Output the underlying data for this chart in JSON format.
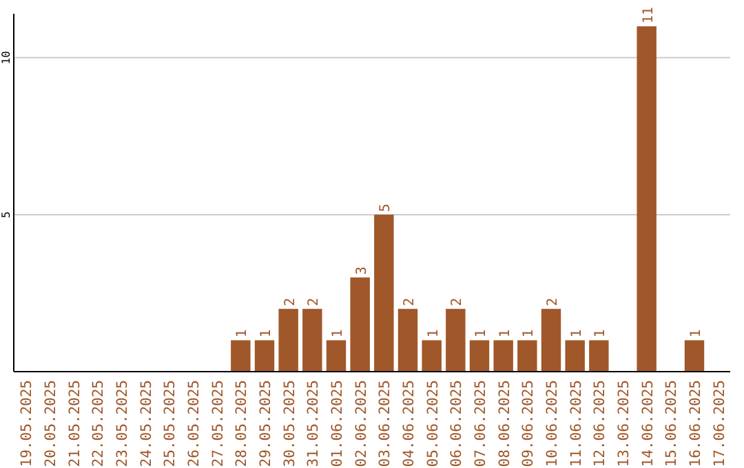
{
  "chart_data": {
    "type": "bar",
    "categories": [
      "19.05.2025",
      "20.05.2025",
      "21.05.2025",
      "22.05.2025",
      "23.05.2025",
      "24.05.2025",
      "25.05.2025",
      "26.05.2025",
      "27.05.2025",
      "28.05.2025",
      "29.05.2025",
      "30.05.2025",
      "31.05.2025",
      "01.06.2025",
      "02.06.2025",
      "03.06.2025",
      "04.06.2025",
      "05.06.2025",
      "06.06.2025",
      "07.06.2025",
      "08.06.2025",
      "09.06.2025",
      "10.06.2025",
      "11.06.2025",
      "12.06.2025",
      "13.06.2025",
      "14.06.2025",
      "15.06.2025",
      "16.06.2025",
      "17.06.2025"
    ],
    "values": [
      0,
      0,
      0,
      0,
      0,
      0,
      0,
      0,
      0,
      1,
      1,
      2,
      2,
      1,
      3,
      5,
      2,
      1,
      2,
      1,
      1,
      1,
      2,
      1,
      1,
      0,
      11,
      0,
      1,
      0
    ],
    "value_labels": [
      null,
      null,
      null,
      null,
      null,
      null,
      null,
      null,
      null,
      "1",
      "1",
      "2",
      "2",
      "1",
      "3",
      "5",
      "2",
      "1",
      "2",
      "1",
      "1",
      "1",
      "2",
      "1",
      "1",
      null,
      "11",
      null,
      "1",
      null
    ],
    "color": "#a0572a",
    "ylim": [
      0,
      11.4
    ],
    "yticks": [
      5,
      10
    ],
    "grid": "y"
  }
}
